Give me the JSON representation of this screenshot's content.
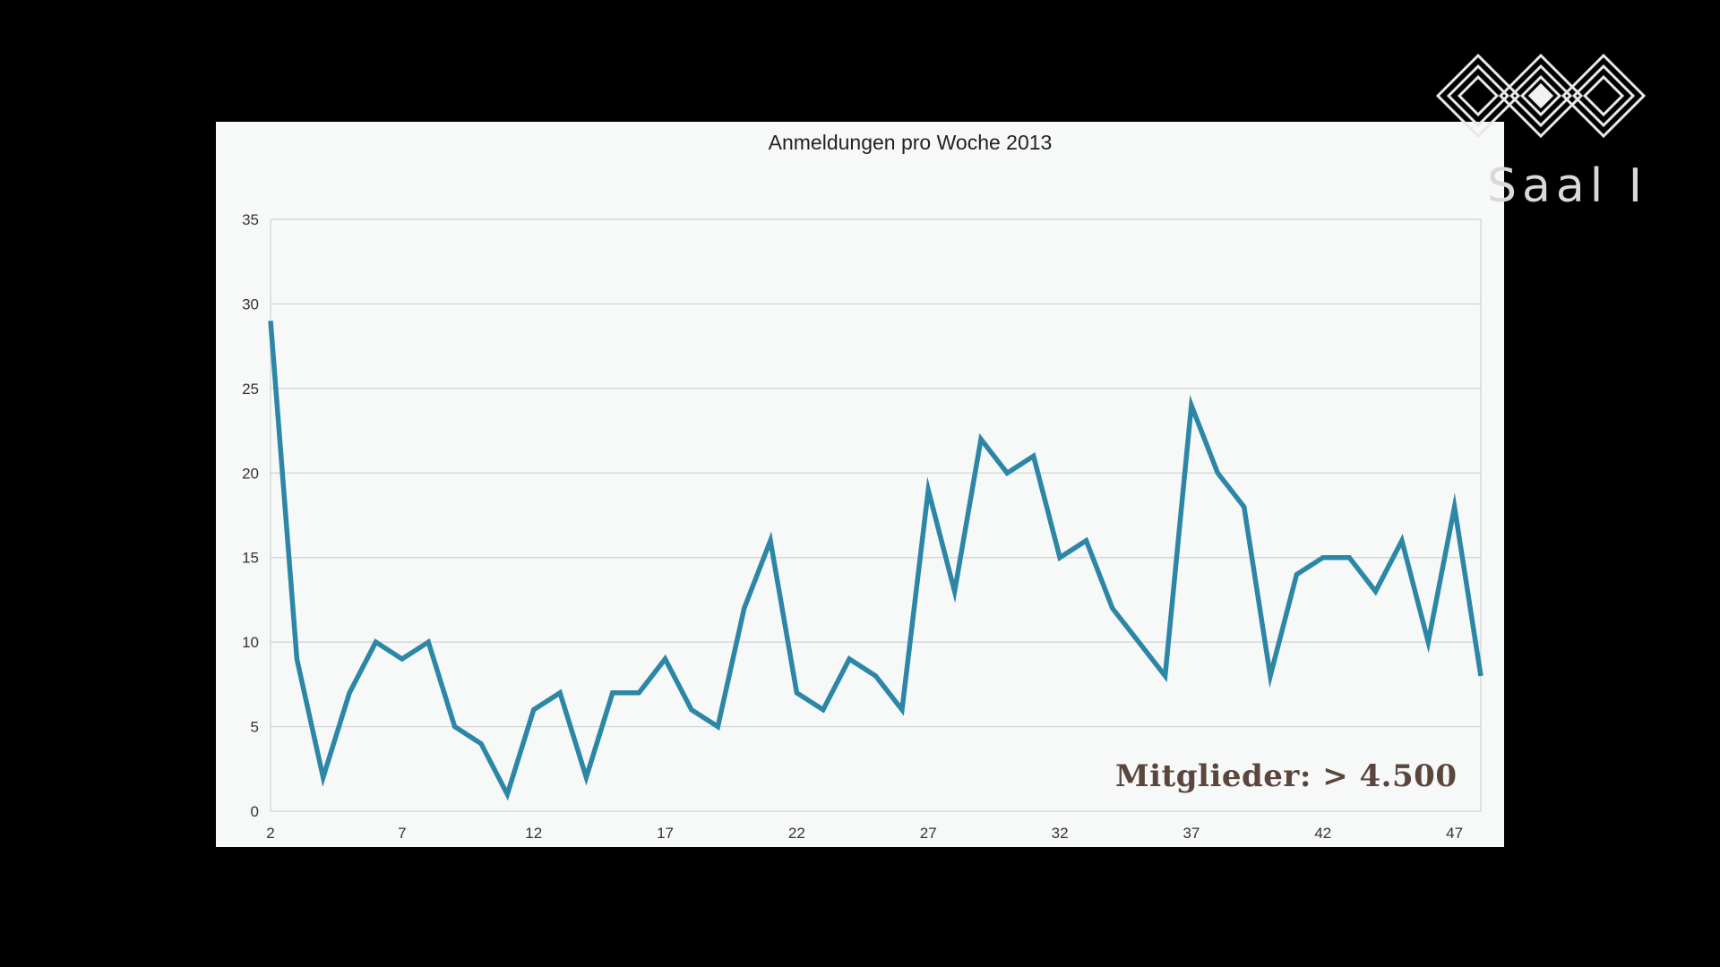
{
  "overlay": {
    "room_label": "Saal I",
    "logo_icon": "event-logo-icon"
  },
  "colors": {
    "line": "#2c87a6",
    "grid": "#cfd3d5",
    "background": "#f7f8f8",
    "annotation": "#5a463c"
  },
  "chart_data": {
    "type": "line",
    "title": "Anmeldungen pro Woche 2013",
    "xlabel": "",
    "ylabel": "",
    "x": [
      2,
      3,
      4,
      5,
      6,
      7,
      8,
      9,
      10,
      11,
      12,
      13,
      14,
      15,
      16,
      17,
      18,
      19,
      20,
      21,
      22,
      23,
      24,
      25,
      26,
      27,
      28,
      29,
      30,
      31,
      32,
      33,
      34,
      35,
      36,
      37,
      38,
      39,
      40,
      41,
      42,
      43,
      44,
      45,
      46,
      47,
      48
    ],
    "series": [
      {
        "values": [
          29,
          9,
          2,
          7,
          10,
          9,
          10,
          5,
          4,
          1,
          6,
          7,
          2,
          7,
          7,
          9,
          6,
          5,
          12,
          16,
          7,
          6,
          9,
          8,
          6,
          19,
          13,
          22,
          20,
          21,
          15,
          16,
          12,
          10,
          8,
          24,
          20,
          18,
          8,
          14,
          15,
          15,
          13,
          16,
          10,
          18,
          8
        ]
      }
    ],
    "xlim": [
      2,
      48
    ],
    "ylim": [
      0,
      35
    ],
    "xticks": [
      2,
      7,
      12,
      17,
      22,
      27,
      32,
      37,
      42,
      47
    ],
    "yticks": [
      0,
      5,
      10,
      15,
      20,
      25,
      30,
      35
    ],
    "grid": true,
    "legend": "none",
    "annotation": "Mitglieder: > 4.500"
  }
}
